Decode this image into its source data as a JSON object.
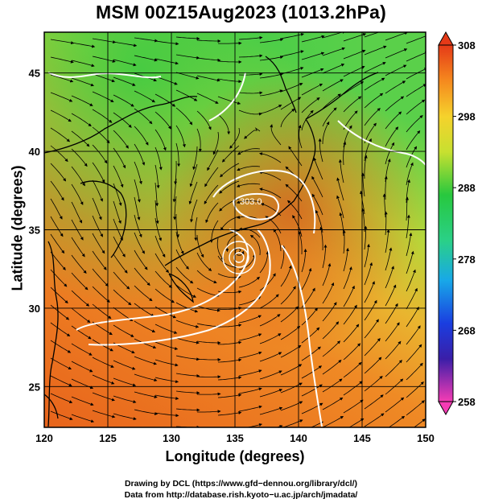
{
  "title": "MSM 00Z15Aug2023 (1013.2hPa)",
  "map": {
    "type": "weather-map",
    "variable_field": "temperature",
    "xlabel": "Longitude (degrees)",
    "ylabel": "Latitude  (degrees)",
    "lon_range": [
      120,
      150
    ],
    "lat_range": [
      22.4,
      47.6
    ],
    "x_ticks": [
      "120",
      "125",
      "130",
      "135",
      "140",
      "145",
      "150"
    ],
    "y_ticks": [
      "25",
      "30",
      "35",
      "40",
      "45"
    ],
    "contour_label": "303.0",
    "storm_center": {
      "lon": 135.3,
      "lat": 33.6
    }
  },
  "colorbar": {
    "ticks": [
      "308",
      "298",
      "288",
      "278",
      "268",
      "258"
    ],
    "min": 258,
    "max": 308
  },
  "colors": {
    "hot": "#e0581e",
    "warm": "#f39a2c",
    "mid": "#b9d83a",
    "cool": "#3cc84a"
  },
  "credits": {
    "line1": "Drawing by DCL (https://www.gfd−dennou.org/library/dcl/)",
    "line2": "Data from http://database.rish.kyoto−u.ac.jp/arch/jmadata/"
  }
}
